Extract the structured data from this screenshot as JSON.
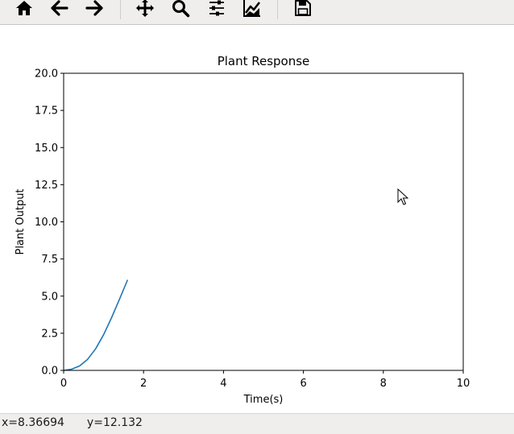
{
  "toolbar": {
    "tools": [
      {
        "name": "home-button",
        "icon": "home-icon"
      },
      {
        "name": "back-button",
        "icon": "arrow-left-icon"
      },
      {
        "name": "forward-button",
        "icon": "arrow-right-icon"
      },
      {
        "name": "pan-button",
        "icon": "move-icon"
      },
      {
        "name": "zoom-button",
        "icon": "magnifier-icon"
      },
      {
        "name": "subplots-button",
        "icon": "sliders-icon"
      },
      {
        "name": "edit-axes-button",
        "icon": "chart-edit-icon"
      },
      {
        "name": "save-button",
        "icon": "floppy-disk-icon"
      }
    ]
  },
  "status": {
    "x": "x=8.36694",
    "y": "y=12.132"
  },
  "colors": {
    "line": "#1f77b4",
    "toolbar_bg": "#efeeec"
  },
  "chart_data": {
    "type": "line",
    "title": "Plant Response",
    "xlabel": "Time(s)",
    "ylabel": "Plant Output",
    "xlim": [
      0,
      10
    ],
    "ylim": [
      0,
      20
    ],
    "xticks": [
      0,
      2,
      4,
      6,
      8,
      10
    ],
    "xtick_labels": [
      "0",
      "2",
      "4",
      "6",
      "8",
      "10"
    ],
    "yticks": [
      0,
      2.5,
      5,
      7.5,
      10,
      12.5,
      15,
      17.5,
      20
    ],
    "ytick_labels": [
      "0.0",
      "2.5",
      "5.0",
      "7.5",
      "10.0",
      "12.5",
      "15.0",
      "17.5",
      "20.0"
    ],
    "grid": false,
    "series": [
      {
        "x": [
          0,
          0.2,
          0.4,
          0.6,
          0.8,
          1.0,
          1.2,
          1.4,
          1.6
        ],
        "y": [
          0,
          0.08,
          0.3,
          0.75,
          1.45,
          2.4,
          3.55,
          4.8,
          6.1
        ]
      }
    ]
  }
}
